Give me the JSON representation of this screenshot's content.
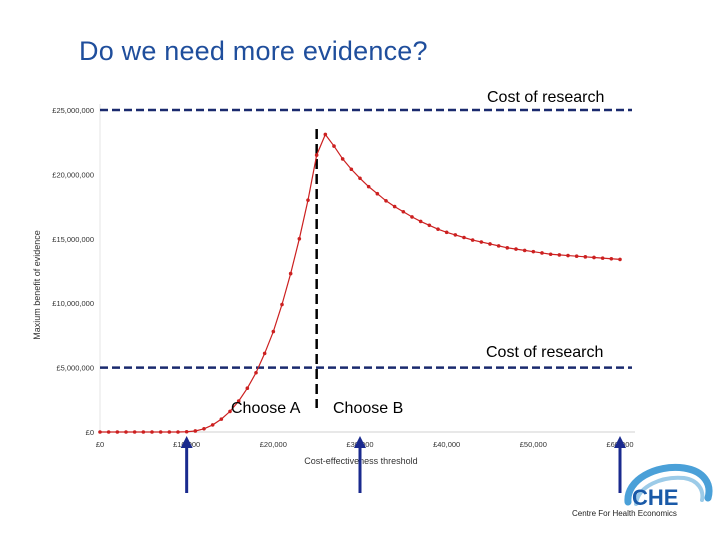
{
  "slide": {
    "title": "Do we need more evidence?"
  },
  "annotations": {
    "cost_of_research_label": "Cost of research",
    "choose_a_label": "Choose A",
    "choose_b_label": "Choose B"
  },
  "logo": {
    "text": "CHE",
    "subtitle": "Centre For Health Economics"
  },
  "colors": {
    "series": "#cc2020",
    "dashed_line": "#1a2a6e",
    "arrow": "#1a2a8e",
    "title": "#1f4e9c"
  },
  "chart_data": {
    "type": "line",
    "xlabel": "Cost-effectiveness threshold",
    "ylabel": "Maxium benefit of evidence",
    "xlim": [
      0,
      61000
    ],
    "ylim": [
      0,
      25000000
    ],
    "x_tick_values": [
      0,
      10000,
      20000,
      30000,
      40000,
      50000,
      60000
    ],
    "x_tick_labels": [
      "£0",
      "£10,000",
      "£20,000",
      "£30,000",
      "£40,000",
      "£50,000",
      "£60,000"
    ],
    "y_tick_values": [
      0,
      5000000,
      10000000,
      15000000,
      20000000,
      25000000
    ],
    "y_tick_labels": [
      "£0",
      "£5,000,000",
      "£10,000,000",
      "£15,000,000",
      "£20,000,000",
      "£25,000,000"
    ],
    "grid": false,
    "legend": "none",
    "series": [
      {
        "x": [
          0,
          1000,
          2000,
          3000,
          4000,
          5000,
          6000,
          7000,
          8000,
          9000,
          10000,
          11000,
          12000,
          13000,
          14000,
          15000,
          16000,
          17000,
          18000,
          19000,
          20000,
          21000,
          22000,
          23000,
          24000,
          25000,
          26000,
          27000,
          28000,
          29000,
          30000,
          31000,
          32000,
          33000,
          34000,
          35000,
          36000,
          37000,
          38000,
          39000,
          40000,
          41000,
          42000,
          43000,
          44000,
          45000,
          46000,
          47000,
          48000,
          49000,
          50000,
          51000,
          52000,
          53000,
          54000,
          55000,
          56000,
          57000,
          58000,
          59000,
          60000
        ],
        "y": [
          0,
          0,
          0,
          0,
          0,
          0,
          0,
          0,
          0,
          0,
          20000,
          80000,
          250000,
          550000,
          1000000,
          1600000,
          2400000,
          3400000,
          4600000,
          6100000,
          7800000,
          9900000,
          12300000,
          15000000,
          18000000,
          21500000,
          23100000,
          22200000,
          21200000,
          20400000,
          19700000,
          19050000,
          18500000,
          17950000,
          17500000,
          17100000,
          16700000,
          16350000,
          16050000,
          15750000,
          15500000,
          15300000,
          15100000,
          14900000,
          14750000,
          14600000,
          14450000,
          14300000,
          14200000,
          14100000,
          14000000,
          13900000,
          13800000,
          13750000,
          13700000,
          13650000,
          13600000,
          13550000,
          13500000,
          13450000,
          13400000
        ]
      }
    ],
    "reference_lines": [
      {
        "axis": "y",
        "value": 25000000,
        "label": "Cost of research",
        "style": "dashed"
      },
      {
        "axis": "y",
        "value": 5000000,
        "label": "Cost of research",
        "style": "dashed"
      },
      {
        "axis": "x",
        "value": 25000,
        "label": "",
        "style": "dashed"
      }
    ],
    "arrows_at_x": [
      10000,
      30000,
      60000
    ]
  }
}
